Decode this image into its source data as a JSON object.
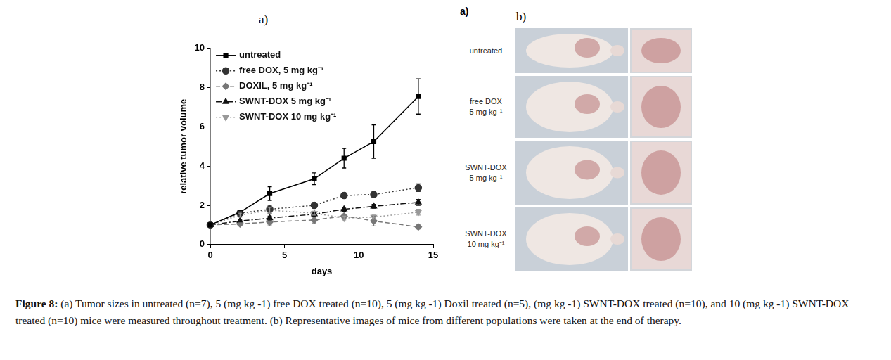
{
  "chart_data": {
    "type": "line",
    "xlabel": "days",
    "ylabel": "relative tumor volume",
    "xlim": [
      0,
      15
    ],
    "xticks": [
      0,
      5,
      10,
      15
    ],
    "ylim": [
      0,
      10
    ],
    "yticks": [
      0,
      2,
      4,
      6,
      8,
      10
    ],
    "grid": false,
    "legend": "upper left",
    "x": [
      0,
      2,
      4,
      7,
      9,
      11,
      14
    ],
    "series": [
      {
        "name": "untreated",
        "color": "#000000",
        "marker": "square",
        "line_style": "solid",
        "values": [
          1,
          1.65,
          2.6,
          3.35,
          4.4,
          5.25,
          7.55
        ],
        "errors": [
          0,
          0.1,
          0.35,
          0.3,
          0.5,
          0.85,
          0.9
        ]
      },
      {
        "name": "free DOX, 5 mg kg⁻¹",
        "color": "#333333",
        "marker": "circle",
        "line_style": "dotted",
        "values": [
          1,
          1.6,
          1.8,
          2.0,
          2.5,
          2.55,
          2.9
        ],
        "errors": [
          0,
          0.1,
          0.2,
          0.15,
          0.15,
          0.15,
          0.2
        ]
      },
      {
        "name": "DOXIL, 5 mg kg⁻¹",
        "color": "#777777",
        "marker": "diamond",
        "line_style": "dashed",
        "values": [
          1,
          1.05,
          1.15,
          1.25,
          1.45,
          1.2,
          0.9
        ],
        "errors": [
          0,
          0.1,
          0.15,
          0.15,
          0.1,
          0.25,
          0.1
        ]
      },
      {
        "name": "SWNT-DOX 5 mg kg⁻¹",
        "color": "#111111",
        "marker": "triangle",
        "line_style": "dashdot",
        "values": [
          1,
          1.2,
          1.35,
          1.55,
          1.8,
          1.95,
          2.15
        ],
        "errors": [
          0,
          0.05,
          0.1,
          0.1,
          0.1,
          0.1,
          0.15
        ]
      },
      {
        "name": "SWNT-DOX 10 mg kg⁻¹",
        "color": "#999999",
        "marker": "triangle_down",
        "line_style": "dotted",
        "values": [
          1,
          1.5,
          1.75,
          1.6,
          1.35,
          1.4,
          1.65
        ],
        "errors": [
          0,
          0.1,
          0.15,
          0.1,
          0.1,
          0.1,
          0.15
        ]
      }
    ]
  },
  "panel_labels": {
    "chart": "a)",
    "photos": "b)"
  },
  "photo_panel": {
    "corner_label": "a)",
    "rows": [
      {
        "label": [
          "untreated"
        ]
      },
      {
        "label": [
          "free DOX",
          "5 mg kg⁻¹"
        ]
      },
      {
        "label": [
          "SWNT-DOX",
          "5 mg kg⁻¹"
        ]
      },
      {
        "label": [
          "SWNT-DOX",
          "10 mg kg⁻¹"
        ]
      }
    ]
  },
  "caption": {
    "label": "Figure 8:",
    "text": "(a) Tumor sizes in untreated (n=7), 5 (mg kg -1) free DOX treated (n=10), 5 (mg kg -1) Doxil treated (n=5), (mg kg -1) SWNT-DOX treated (n=10), and 10 (mg kg -1) SWNT-DOX treated (n=10) mice were measured throughout treatment. (b) Representative images of mice from different populations were taken at the end of therapy."
  }
}
